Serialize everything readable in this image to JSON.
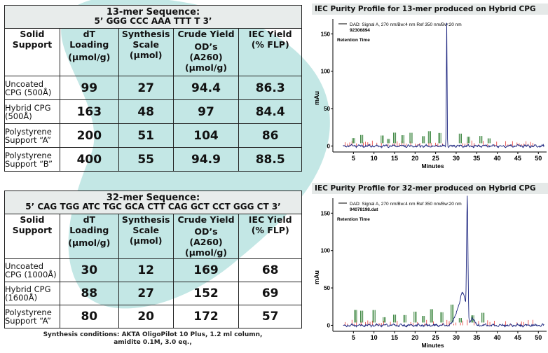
{
  "table1": {
    "title_line1": "13-mer Sequence:",
    "title_line2": "5’ GGG CCC AAA TTT T 3’",
    "headers": [
      [
        "Solid",
        "Support"
      ],
      [
        "dT",
        "Loading",
        "(µmol/g)"
      ],
      [
        "Synthesis",
        "Scale",
        "(µmol)"
      ],
      [
        "Crude Yield",
        "OD’s",
        "(A260)",
        "(µmol/g)"
      ],
      [
        "IEC Yield",
        "(% FLP)"
      ]
    ],
    "rows": [
      {
        "support": [
          "Uncoated",
          "CPG (500Å)"
        ],
        "loading": "99",
        "scale": "27",
        "crude": "94.4",
        "iec": "86.3"
      },
      {
        "support": [
          "Hybrid CPG",
          "(500Å)"
        ],
        "loading": "163",
        "scale": "48",
        "crude": "97",
        "iec": "84.4"
      },
      {
        "support": [
          "Polystyrene",
          "Support “A”"
        ],
        "loading": "200",
        "scale": "51",
        "crude": "104",
        "iec": "86"
      },
      {
        "support": [
          "Polystyrene",
          "Support “B”"
        ],
        "loading": "400",
        "scale": "55",
        "crude": "94.9",
        "iec": "88.5"
      }
    ]
  },
  "table2": {
    "title_line1": "32-mer Sequence:",
    "title_line2": "5’ CAG TGG ATC TGC GCA CTT CAG GCT CCT GGG CT 3’",
    "headers": [
      [
        "Solid",
        "Support"
      ],
      [
        "dT",
        "Loading",
        "(µmol/g)"
      ],
      [
        "Synthesis",
        "Scale",
        "(µmol)"
      ],
      [
        "Crude Yield",
        "OD’s",
        "(A260)",
        "(µmol/g)"
      ],
      [
        "IEC Yield",
        "(% FLP)"
      ]
    ],
    "rows": [
      {
        "support": [
          "Uncoated",
          "CPG (1000Å)"
        ],
        "loading": "30",
        "scale": "12",
        "crude": "169",
        "iec": "68"
      },
      {
        "support": [
          "Hybrid CPG",
          "(1600Å)"
        ],
        "loading": "88",
        "scale": "27",
        "crude": "152",
        "iec": "69"
      },
      {
        "support": [
          "Polystyrene",
          "Support “A”"
        ],
        "loading": "80",
        "scale": "20",
        "crude": "172",
        "iec": "57"
      }
    ]
  },
  "conditions": {
    "line1": "Synthesis conditions: AKTA OligoPilot 10 Plus, 1.2 ml column,",
    "line2": "amidite 0.1M, 3.0 eq.,"
  },
  "chart_data": [
    {
      "type": "line",
      "title": "IEC Purity Profile for 13-mer produced on Hybrid CPG",
      "annotation1": "DAD: Signal A, 270 nm/Bw:4 nm Ref 350 nm/Bw:20 nm",
      "annotation2": "92306894",
      "annotation3": "Retention Time",
      "xlabel": "Minutes",
      "ylabel": "mAu",
      "xticks": [
        "5",
        "10",
        "15",
        "20",
        "25",
        "30",
        "35",
        "40",
        "45",
        "50"
      ],
      "yticks": [
        "0",
        "50",
        "100",
        "150"
      ],
      "xlim": [
        0,
        52
      ],
      "ylim": [
        -8,
        170
      ],
      "main_peak": {
        "x": 27.7,
        "y": 165
      },
      "colors": {
        "trace": "#1a237e",
        "baseline": "#e53935",
        "labels": "#2e7d32"
      }
    },
    {
      "type": "line",
      "title": "IEC Purity Profile for 32-mer produced on Hybrid CPG",
      "annotation1": "DAD: Signal A, 270 nm/Bw:4 nm Ref 350 nm/Bw:20 nm",
      "annotation2": "94078198.dat",
      "annotation3": "Retention Time",
      "xlabel": "Minutes",
      "ylabel": "mAu",
      "xticks": [
        "5",
        "10",
        "15",
        "20",
        "25",
        "30",
        "35",
        "40",
        "45",
        "50"
      ],
      "yticks": [
        "0",
        "50",
        "100",
        "150"
      ],
      "xlim": [
        0,
        52
      ],
      "ylim": [
        -8,
        170
      ],
      "main_peak": {
        "x": 32.7,
        "y": 160
      },
      "colors": {
        "trace": "#1a237e",
        "baseline": "#e53935",
        "labels": "#2e7d32"
      }
    }
  ],
  "colors": {
    "blob": "#b9e3e0",
    "header_bg": "#e5e9e8"
  }
}
